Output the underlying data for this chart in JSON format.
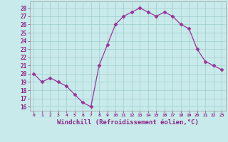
{
  "x": [
    0,
    1,
    2,
    3,
    4,
    5,
    6,
    7,
    8,
    9,
    10,
    11,
    12,
    13,
    14,
    15,
    16,
    17,
    18,
    19,
    20,
    21,
    22,
    23
  ],
  "y": [
    20.0,
    19.0,
    19.5,
    19.0,
    18.5,
    17.5,
    16.5,
    16.0,
    21.0,
    23.5,
    26.0,
    27.0,
    27.5,
    28.0,
    27.5,
    27.0,
    27.5,
    27.0,
    26.0,
    25.5,
    23.0,
    21.5,
    21.0,
    20.5
  ],
  "line_color": "#993399",
  "marker": "D",
  "markersize": 2.5,
  "linewidth": 0.9,
  "xlabel": "Windchill (Refroidissement éolien,°C)",
  "xtick_labels": [
    "0",
    "1",
    "2",
    "3",
    "4",
    "5",
    "6",
    "7",
    "8",
    "9",
    "10",
    "11",
    "12",
    "13",
    "14",
    "15",
    "16",
    "17",
    "18",
    "19",
    "20",
    "21",
    "22",
    "23"
  ],
  "ytick_values": [
    16,
    17,
    18,
    19,
    20,
    21,
    22,
    23,
    24,
    25,
    26,
    27,
    28
  ],
  "ylim": [
    15.5,
    28.8
  ],
  "xlim": [
    -0.5,
    23.5
  ],
  "background_color": "#c8eaea",
  "grid_color": "#a0cccc",
  "tick_color": "#882288"
}
